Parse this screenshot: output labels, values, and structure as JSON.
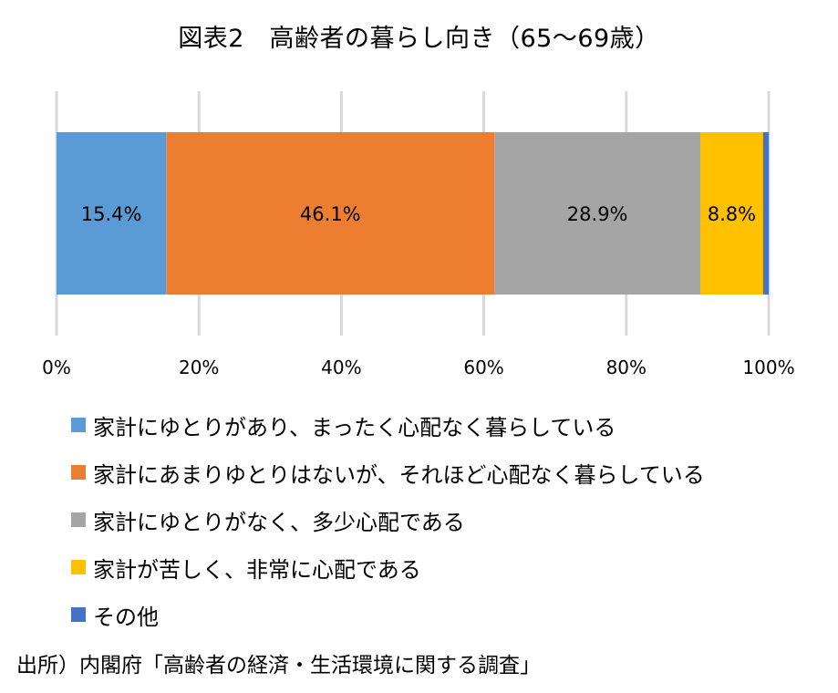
{
  "chart_data": {
    "type": "bar",
    "orientation": "horizontal-stacked",
    "title": "図表2　高齢者の暮らし向き（65～69歳）",
    "xlim": [
      0,
      100
    ],
    "x_ticks": [
      "0%",
      "20%",
      "40%",
      "60%",
      "80%",
      "100%"
    ],
    "grid": true,
    "legend_position": "bottom",
    "series": [
      {
        "name": "家計にゆとりがあり、まったく心配なく暮らしている",
        "value": 15.4,
        "label": "15.4%",
        "color": "#5B9BD5"
      },
      {
        "name": "家計にあまりゆとりはないが、それほど心配なく暮らしている",
        "value": 46.1,
        "label": "46.1%",
        "color": "#ED7D31"
      },
      {
        "name": "家計にゆとりがなく、多少心配である",
        "value": 28.9,
        "label": "28.9%",
        "color": "#A5A5A5"
      },
      {
        "name": "家計が苦しく、非常に心配である",
        "value": 8.8,
        "label": "8.8%",
        "color": "#FFC000"
      },
      {
        "name": "その他",
        "value": 0.8,
        "label": "",
        "color": "#4472C4"
      }
    ]
  },
  "source": "出所）内閣府「高齢者の経済・生活環境に関する調査」"
}
